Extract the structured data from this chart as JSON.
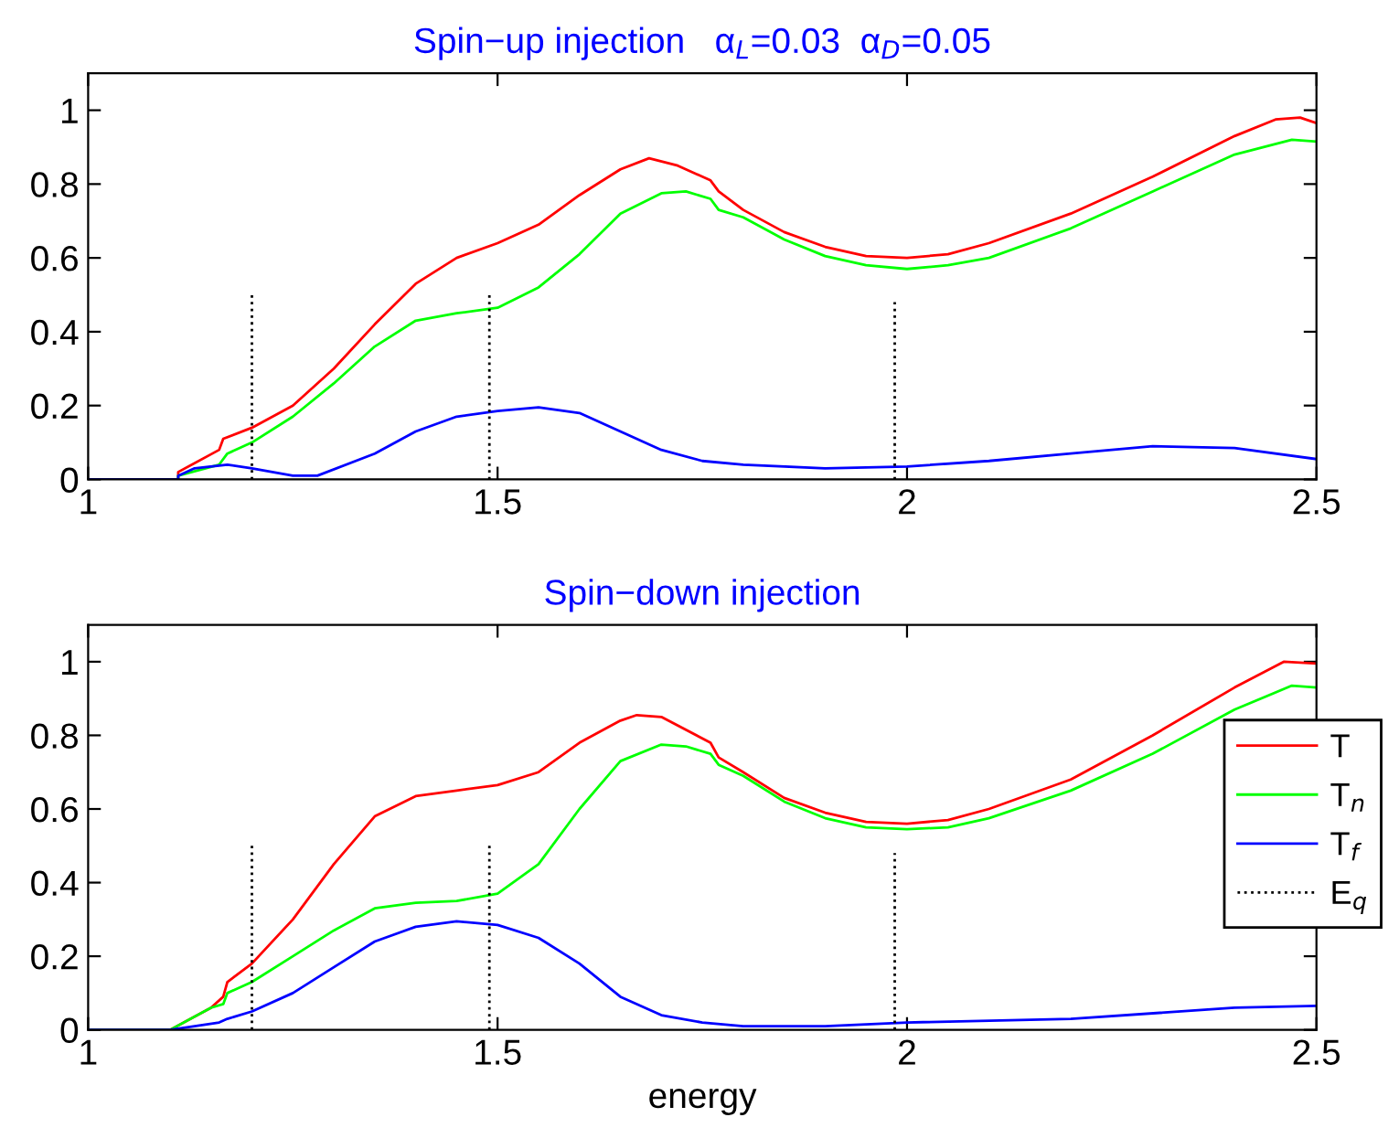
{
  "chart_data": [
    {
      "type": "line",
      "title": "Spin−up injection   α$_{L}$=0.03  α$_{D}$=0.05",
      "xlim": [
        1,
        2.5
      ],
      "xticks": [
        1,
        1.5,
        2,
        2.5
      ],
      "ylim": [
        0,
        1.1
      ],
      "yticks": [
        0,
        0.2,
        0.4,
        0.6,
        0.8,
        1
      ],
      "grid": false,
      "legend": false,
      "series": [
        {
          "color": "#ff0000",
          "x": [
            1.0,
            1.11,
            1.11,
            1.16,
            1.165,
            1.2,
            1.25,
            1.3,
            1.35,
            1.4,
            1.45,
            1.5,
            1.55,
            1.6,
            1.65,
            1.685,
            1.72,
            1.76,
            1.77,
            1.8,
            1.85,
            1.9,
            1.95,
            2.0,
            2.05,
            2.1,
            2.2,
            2.3,
            2.4,
            2.45,
            2.48,
            2.5
          ],
          "values": [
            0,
            0,
            0.02,
            0.08,
            0.11,
            0.14,
            0.2,
            0.3,
            0.42,
            0.53,
            0.6,
            0.64,
            0.69,
            0.77,
            0.84,
            0.87,
            0.85,
            0.81,
            0.78,
            0.73,
            0.67,
            0.63,
            0.605,
            0.6,
            0.61,
            0.64,
            0.72,
            0.82,
            0.93,
            0.975,
            0.98,
            0.965
          ]
        },
        {
          "color": "#00ff00",
          "x": [
            1.0,
            1.11,
            1.11,
            1.16,
            1.17,
            1.2,
            1.25,
            1.3,
            1.35,
            1.4,
            1.45,
            1.5,
            1.55,
            1.6,
            1.65,
            1.7,
            1.73,
            1.76,
            1.77,
            1.8,
            1.85,
            1.9,
            1.95,
            2.0,
            2.05,
            2.1,
            2.2,
            2.3,
            2.4,
            2.47,
            2.5
          ],
          "values": [
            0,
            0,
            0.01,
            0.04,
            0.07,
            0.1,
            0.17,
            0.26,
            0.36,
            0.43,
            0.45,
            0.465,
            0.52,
            0.61,
            0.72,
            0.775,
            0.78,
            0.76,
            0.73,
            0.71,
            0.65,
            0.605,
            0.58,
            0.57,
            0.58,
            0.6,
            0.68,
            0.78,
            0.88,
            0.92,
            0.915
          ]
        },
        {
          "color": "#0000ff",
          "x": [
            1.0,
            1.11,
            1.11,
            1.13,
            1.17,
            1.2,
            1.25,
            1.28,
            1.35,
            1.4,
            1.45,
            1.5,
            1.55,
            1.6,
            1.65,
            1.7,
            1.75,
            1.8,
            1.9,
            2.0,
            2.1,
            2.2,
            2.3,
            2.4,
            2.5
          ],
          "values": [
            0,
            0,
            0.01,
            0.03,
            0.04,
            0.03,
            0.01,
            0.01,
            0.07,
            0.13,
            0.17,
            0.185,
            0.195,
            0.18,
            0.13,
            0.08,
            0.05,
            0.04,
            0.03,
            0.035,
            0.05,
            0.07,
            0.09,
            0.085,
            0.055
          ]
        },
        {
          "color": "#000000",
          "line_style": "dotted",
          "x": [
            1.2,
            1.2,
            null,
            1.49,
            1.49,
            null,
            1.985,
            1.985
          ],
          "values": [
            0,
            0.5,
            null,
            0,
            0.5,
            null,
            0,
            0.48
          ]
        }
      ]
    },
    {
      "type": "line",
      "title": "Spin−down injection",
      "xlabel": "energy",
      "xlim": [
        1,
        2.5
      ],
      "xticks": [
        1,
        1.5,
        2,
        2.5
      ],
      "ylim": [
        0,
        1.1
      ],
      "yticks": [
        0,
        0.2,
        0.4,
        0.6,
        0.8,
        1
      ],
      "grid": false,
      "legend": "right",
      "series": [
        {
          "name": "T",
          "color": "#ff0000",
          "x": [
            1.0,
            1.1,
            1.15,
            1.165,
            1.17,
            1.2,
            1.25,
            1.3,
            1.35,
            1.4,
            1.45,
            1.5,
            1.55,
            1.6,
            1.65,
            1.67,
            1.7,
            1.76,
            1.77,
            1.8,
            1.85,
            1.9,
            1.95,
            2.0,
            2.05,
            2.1,
            2.2,
            2.3,
            2.4,
            2.46,
            2.5
          ],
          "values": [
            0,
            0,
            0.06,
            0.09,
            0.13,
            0.18,
            0.3,
            0.45,
            0.58,
            0.635,
            0.65,
            0.665,
            0.7,
            0.78,
            0.84,
            0.855,
            0.85,
            0.78,
            0.74,
            0.7,
            0.63,
            0.59,
            0.565,
            0.56,
            0.57,
            0.6,
            0.68,
            0.8,
            0.93,
            1.0,
            0.995
          ]
        },
        {
          "name": "T$_{n}$",
          "color": "#00ff00",
          "x": [
            1.0,
            1.1,
            1.15,
            1.165,
            1.17,
            1.2,
            1.25,
            1.3,
            1.35,
            1.4,
            1.45,
            1.5,
            1.55,
            1.6,
            1.65,
            1.7,
            1.73,
            1.76,
            1.77,
            1.8,
            1.85,
            1.9,
            1.95,
            2.0,
            2.05,
            2.1,
            2.2,
            2.3,
            2.4,
            2.47,
            2.5
          ],
          "values": [
            0,
            0,
            0.06,
            0.07,
            0.1,
            0.13,
            0.2,
            0.27,
            0.33,
            0.345,
            0.35,
            0.37,
            0.45,
            0.6,
            0.73,
            0.775,
            0.77,
            0.75,
            0.72,
            0.69,
            0.62,
            0.575,
            0.55,
            0.545,
            0.55,
            0.575,
            0.65,
            0.75,
            0.87,
            0.935,
            0.93
          ]
        },
        {
          "name": "T$_{f}$",
          "color": "#0000ff",
          "x": [
            1.0,
            1.1,
            1.16,
            1.17,
            1.2,
            1.25,
            1.3,
            1.35,
            1.4,
            1.45,
            1.5,
            1.55,
            1.6,
            1.65,
            1.7,
            1.75,
            1.8,
            1.9,
            2.0,
            2.2,
            2.4,
            2.5
          ],
          "values": [
            0,
            0,
            0.02,
            0.03,
            0.05,
            0.1,
            0.17,
            0.24,
            0.28,
            0.295,
            0.285,
            0.25,
            0.18,
            0.09,
            0.04,
            0.02,
            0.01,
            0.01,
            0.02,
            0.03,
            0.06,
            0.065
          ]
        },
        {
          "name": "E$_{q}$",
          "color": "#000000",
          "line_style": "dotted",
          "x": [
            1.2,
            1.2,
            null,
            1.49,
            1.49,
            null,
            1.985,
            1.985
          ],
          "values": [
            0,
            0.5,
            null,
            0,
            0.5,
            null,
            0,
            0.48
          ]
        }
      ]
    }
  ]
}
